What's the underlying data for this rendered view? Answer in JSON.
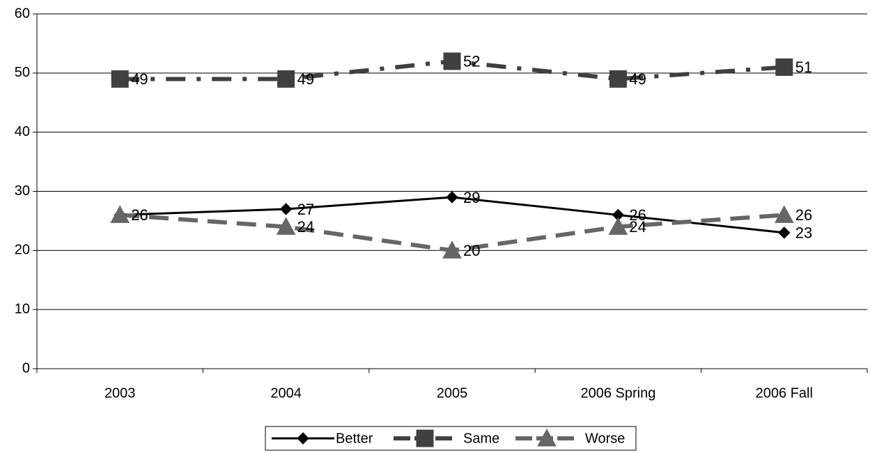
{
  "chart_data": {
    "type": "line",
    "categories": [
      "2003",
      "2004",
      "2005",
      "2006 Spring",
      "2006 Fall"
    ],
    "series": [
      {
        "name": "Better",
        "color": "#000000",
        "marker": "diamond",
        "dash": "solid",
        "values": [
          26,
          27,
          29,
          26,
          23
        ]
      },
      {
        "name": "Same",
        "color": "#404040",
        "marker": "square",
        "dash": "dashdot",
        "values": [
          49,
          49,
          52,
          49,
          51
        ]
      },
      {
        "name": "Worse",
        "color": "#666666",
        "marker": "triangle",
        "dash": "dash",
        "values": [
          26,
          24,
          20,
          24,
          26
        ]
      }
    ],
    "ylim": [
      0,
      60
    ],
    "yticks": [
      0,
      10,
      20,
      30,
      40,
      50,
      60
    ],
    "grid": true,
    "legend": "bottom"
  }
}
